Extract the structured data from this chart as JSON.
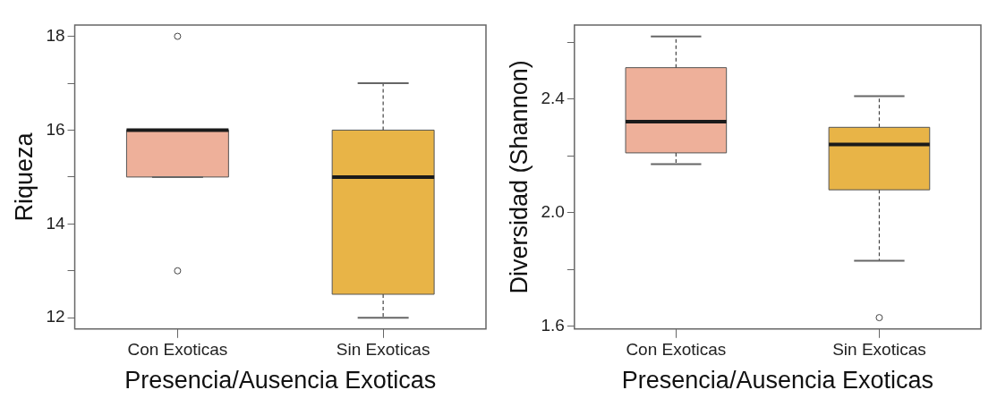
{
  "chart_data": [
    {
      "type": "box",
      "xlabel": "Presencia/Ausencia Exoticas",
      "ylabel": "Riqueza",
      "categories": [
        "Con Exoticas",
        "Sin Exoticas"
      ],
      "colors": [
        "#eeb09a",
        "#e8b447"
      ],
      "boxes": [
        {
          "low": 15,
          "q1": 15,
          "median": 16,
          "q3": 16,
          "high": 16,
          "outliers": [
            13,
            18
          ]
        },
        {
          "low": 12,
          "q1": 12.5,
          "median": 15,
          "q3": 16,
          "high": 17
        }
      ],
      "ylim": [
        11.76,
        18.24
      ],
      "yticks": [
        12,
        {
          "value": 13,
          "label": null
        },
        14,
        {
          "value": 15,
          "label": null
        },
        16,
        {
          "value": 17,
          "label": null
        },
        18
      ]
    },
    {
      "type": "box",
      "xlabel": "Presencia/Ausencia Exoticas",
      "ylabel": "Diversidad (Shannon)",
      "categories": [
        "Con Exoticas",
        "Sin Exoticas"
      ],
      "colors": [
        "#eeb09a",
        "#e8b447"
      ],
      "boxes": [
        {
          "low": 2.17,
          "q1": 2.21,
          "median": 2.32,
          "q3": 2.51,
          "high": 2.62
        },
        {
          "low": 1.83,
          "q1": 2.08,
          "median": 2.24,
          "q3": 2.3,
          "high": 2.41,
          "outliers": [
            1.63
          ]
        }
      ],
      "ylim": [
        1.59,
        2.66
      ],
      "yticks": [
        1.6,
        {
          "value": 1.8,
          "label": null
        },
        {
          "value": 2,
          "label": "2.0"
        },
        {
          "value": 2.2,
          "label": null
        },
        2.4,
        {
          "value": 2.6,
          "label": null
        }
      ]
    }
  ]
}
